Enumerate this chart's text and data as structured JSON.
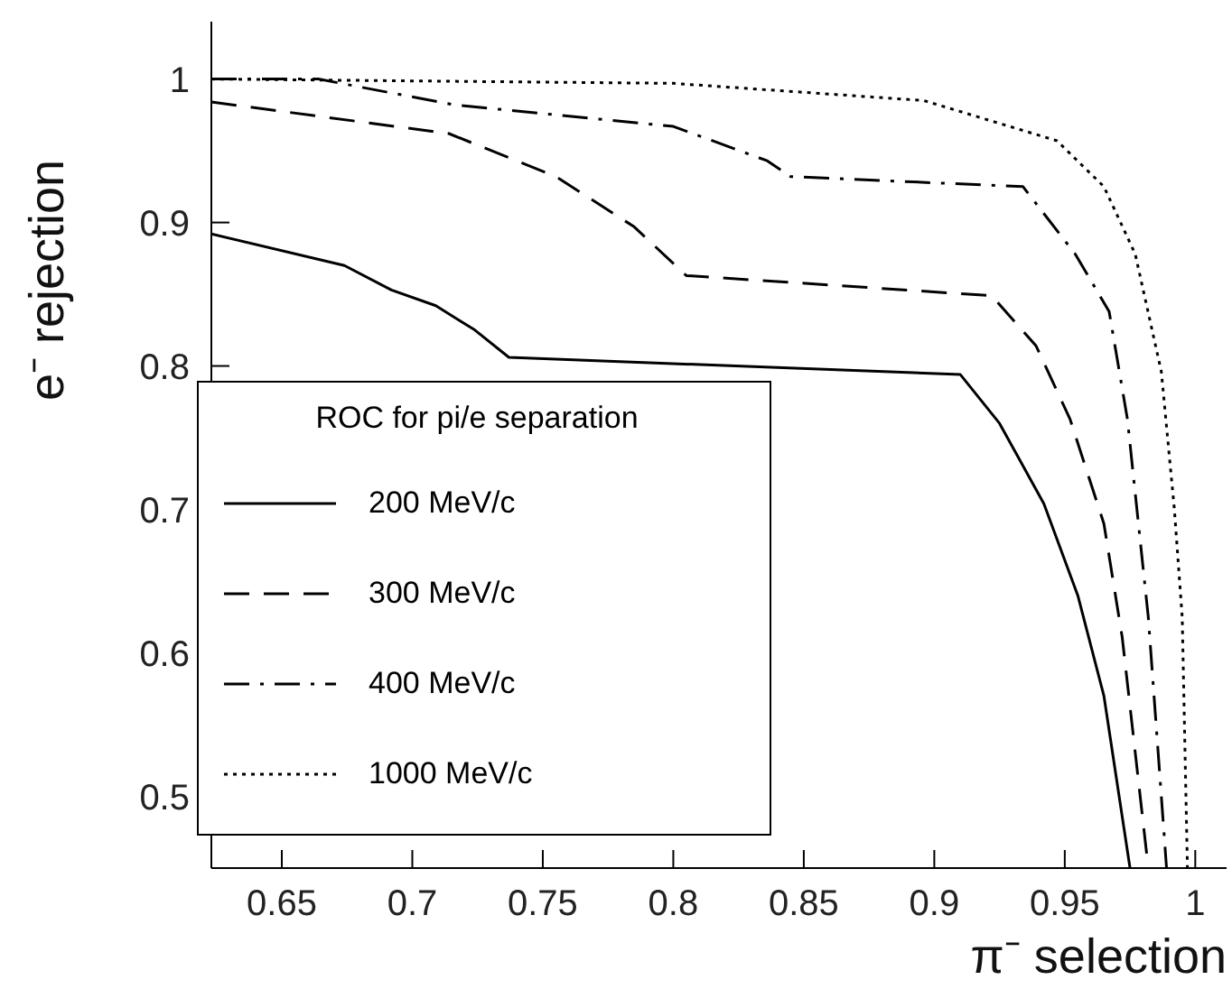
{
  "chart_data": {
    "type": "line",
    "xlabel": "π⁻ selection",
    "ylabel": "e⁻ rejection",
    "legend_title": "ROC for pi/e separation",
    "legend": "bottom left",
    "grid": false,
    "marker": "none",
    "xlim": [
      0.623,
      1.012
    ],
    "ylim": [
      0.45,
      1.04
    ],
    "xticks": [
      0.65,
      0.7,
      0.75,
      0.8,
      0.85,
      0.9,
      0.95,
      1
    ],
    "yticks": [
      0.5,
      0.6,
      0.7,
      0.8,
      0.9,
      1
    ],
    "series": [
      {
        "name": "200 MeV/c",
        "color": "#000000",
        "line_style": "solid",
        "x": [
          0.623,
          0.674,
          0.692,
          0.709,
          0.724,
          0.737,
          0.91,
          0.925,
          0.942,
          0.955,
          0.965,
          0.975
        ],
        "values": [
          0.892,
          0.87,
          0.853,
          0.842,
          0.825,
          0.806,
          0.794,
          0.76,
          0.704,
          0.64,
          0.57,
          0.45
        ]
      },
      {
        "name": "300 MeV/c",
        "color": "#000000",
        "line_style": "dashed",
        "x": [
          0.623,
          0.714,
          0.755,
          0.785,
          0.805,
          0.922,
          0.939,
          0.952,
          0.965,
          0.972,
          0.982
        ],
        "values": [
          0.984,
          0.962,
          0.932,
          0.897,
          0.863,
          0.849,
          0.814,
          0.763,
          0.69,
          0.611,
          0.45
        ]
      },
      {
        "name": "400 MeV/c",
        "color": "#000000",
        "line_style": "dashdot",
        "x": [
          0.623,
          0.664,
          0.716,
          0.8,
          0.836,
          0.845,
          0.934,
          0.954,
          0.967,
          0.974,
          0.982,
          0.989
        ],
        "values": [
          1.0,
          1.0,
          0.982,
          0.967,
          0.943,
          0.932,
          0.925,
          0.878,
          0.838,
          0.763,
          0.625,
          0.45
        ]
      },
      {
        "name": "1000 MeV/c",
        "color": "#000000",
        "line_style": "dotted",
        "x": [
          0.623,
          0.8,
          0.896,
          0.947,
          0.965,
          0.977,
          0.987,
          0.992,
          0.995,
          0.997
        ],
        "values": [
          1.0,
          0.997,
          0.985,
          0.957,
          0.925,
          0.878,
          0.796,
          0.7,
          0.625,
          0.45
        ]
      }
    ]
  }
}
